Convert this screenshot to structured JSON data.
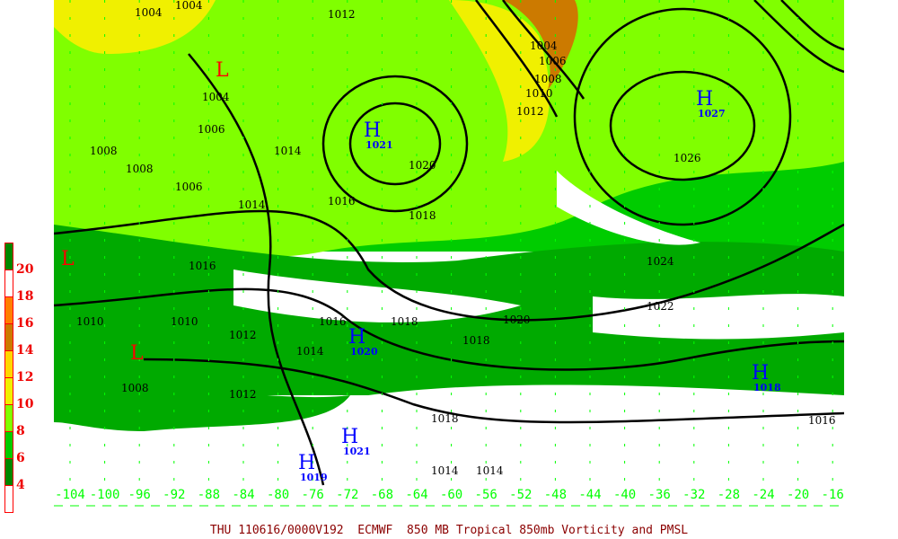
{
  "title": "THU 110616/0000V192  ECMWF  850 MB Tropical 850mb Vorticity and PMSL",
  "colorbar": {
    "levels": [
      "4",
      "6",
      "8",
      "10",
      "12",
      "14",
      "16",
      "18",
      "20"
    ],
    "colors": [
      "#ffffff",
      "#008800",
      "#00cc00",
      "#80ff00",
      "#f0f000",
      "#ffd700",
      "#cc7a00",
      "#ff7f00",
      "#ffffff",
      "#008800"
    ]
  },
  "longitude_labels": [
    "-104",
    "-100",
    "-96",
    "-92",
    "-88",
    "-84",
    "-80",
    "-76",
    "-72",
    "-68",
    "-64",
    "-60",
    "-56",
    "-52",
    "-48",
    "-44",
    "-40",
    "-36",
    "-32",
    "-28",
    "-24",
    "-20",
    "-16"
  ],
  "pressure_labels": [
    "1004",
    "1004",
    "1006",
    "1008",
    "1008",
    "1006",
    "1004",
    "1012",
    "1014",
    "1014",
    "1016",
    "1020",
    "1018",
    "1004",
    "1006",
    "1008",
    "1010",
    "1012",
    "1026",
    "1024",
    "1022",
    "1020",
    "1018",
    "1016",
    "1010",
    "1012",
    "1014",
    "1016",
    "1018",
    "1010",
    "1012",
    "1008",
    "1016",
    "1014",
    "1014",
    "1018"
  ],
  "highs": [
    {
      "label": "H",
      "value": "1021"
    },
    {
      "label": "H",
      "value": "1027"
    },
    {
      "label": "H",
      "value": "1018"
    },
    {
      "label": "H",
      "value": "1020"
    },
    {
      "label": "H",
      "value": "1021"
    },
    {
      "label": "H",
      "value": "1019"
    }
  ],
  "lows": [
    {
      "label": "L"
    },
    {
      "label": "L"
    },
    {
      "label": "L"
    }
  ],
  "colors": {
    "lon_axis": "#00ff00",
    "pmsl_contour": "#000000",
    "vorticity_contour": "#ff00ff",
    "title": "#8b0000",
    "high": "#0000ff",
    "low": "#ff0000"
  }
}
